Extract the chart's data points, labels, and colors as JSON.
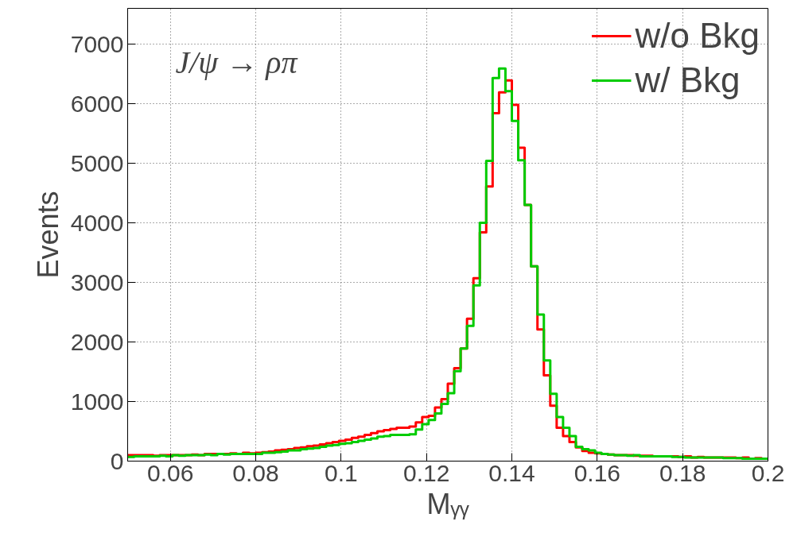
{
  "chart_data": {
    "type": "histogram",
    "xlabel": "Mᵧᵧ",
    "ylabel": "Events",
    "annotations": [
      "J/ψ → ρπ"
    ],
    "bins": [
      0.05,
      0.0515,
      0.053,
      0.0545,
      0.056,
      0.0575,
      0.059,
      0.0605,
      0.062,
      0.0635,
      0.065,
      0.0665,
      0.068,
      0.0695,
      0.071,
      0.0725,
      0.074,
      0.0755,
      0.077,
      0.0785,
      0.08,
      0.0815,
      0.083,
      0.0845,
      0.086,
      0.0875,
      0.089,
      0.0905,
      0.092,
      0.0935,
      0.095,
      0.0965,
      0.098,
      0.0995,
      0.101,
      0.1025,
      0.104,
      0.1055,
      0.107,
      0.1085,
      0.11,
      0.1115,
      0.113,
      0.1145,
      0.116,
      0.1175,
      0.119,
      0.1205,
      0.122,
      0.1235,
      0.125,
      0.1265,
      0.128,
      0.1295,
      0.131,
      0.1325,
      0.134,
      0.1355,
      0.137,
      0.1385,
      0.14,
      0.1415,
      0.143,
      0.1445,
      0.146,
      0.1475,
      0.149,
      0.1505,
      0.152,
      0.1535,
      0.155,
      0.1565,
      0.158,
      0.1595,
      0.161,
      0.1625,
      0.164,
      0.1655,
      0.167,
      0.1685,
      0.17,
      0.1715,
      0.173,
      0.1745,
      0.176,
      0.1775,
      0.179,
      0.1805,
      0.182,
      0.1835,
      0.185,
      0.1865,
      0.188,
      0.1895,
      0.191,
      0.1925,
      0.194,
      0.1955,
      0.197,
      0.1985,
      0.2
    ],
    "series": [
      {
        "name": "w/o Bkg",
        "color": "#ff0000",
        "values": [
          100,
          100,
          100,
          100,
          90,
          100,
          100,
          100,
          100,
          100,
          110,
          100,
          120,
          120,
          120,
          120,
          130,
          120,
          140,
          130,
          140,
          150,
          160,
          180,
          190,
          200,
          220,
          230,
          250,
          260,
          280,
          300,
          320,
          340,
          360,
          390,
          410,
          440,
          470,
          500,
          520,
          540,
          560,
          560,
          580,
          650,
          740,
          760,
          900,
          1040,
          1300,
          1560,
          1890,
          2390,
          3070,
          3840,
          4610,
          5840,
          6190,
          6390,
          5980,
          5260,
          4300,
          3270,
          2210,
          1440,
          930,
          560,
          420,
          320,
          230,
          170,
          140,
          130,
          120,
          110,
          100,
          100,
          100,
          90,
          90,
          90,
          80,
          80,
          80,
          80,
          70,
          80,
          60,
          70,
          60,
          60,
          60,
          60,
          60,
          50,
          60,
          40,
          50,
          40
        ]
      },
      {
        "name": "w/ Bkg",
        "color": "#00cc00",
        "values": [
          70,
          80,
          80,
          80,
          80,
          90,
          80,
          100,
          90,
          100,
          100,
          100,
          110,
          100,
          120,
          110,
          120,
          120,
          120,
          120,
          120,
          140,
          140,
          150,
          160,
          180,
          180,
          200,
          210,
          220,
          240,
          260,
          270,
          290,
          300,
          320,
          340,
          360,
          380,
          410,
          420,
          440,
          440,
          440,
          450,
          530,
          620,
          690,
          800,
          960,
          1140,
          1510,
          1890,
          2270,
          2950,
          4000,
          5040,
          6430,
          6590,
          6210,
          5710,
          5050,
          4300,
          3270,
          2460,
          1690,
          1130,
          740,
          560,
          420,
          240,
          200,
          180,
          140,
          120,
          110,
          100,
          100,
          90,
          100,
          80,
          80,
          80,
          80,
          80,
          70,
          70,
          60,
          60,
          60,
          60,
          60,
          60,
          50,
          50,
          50,
          40,
          40,
          40,
          40
        ]
      }
    ],
    "xlim": [
      0.05,
      0.2
    ],
    "xticks": [
      0.06,
      0.08,
      0.1,
      0.12,
      0.14,
      0.16,
      0.18,
      0.2
    ],
    "ylim": [
      0,
      7600
    ],
    "yticks": [
      0,
      1000,
      2000,
      3000,
      4000,
      5000,
      6000,
      7000
    ],
    "grid": true,
    "legend": "top right",
    "line_style": "solid"
  }
}
